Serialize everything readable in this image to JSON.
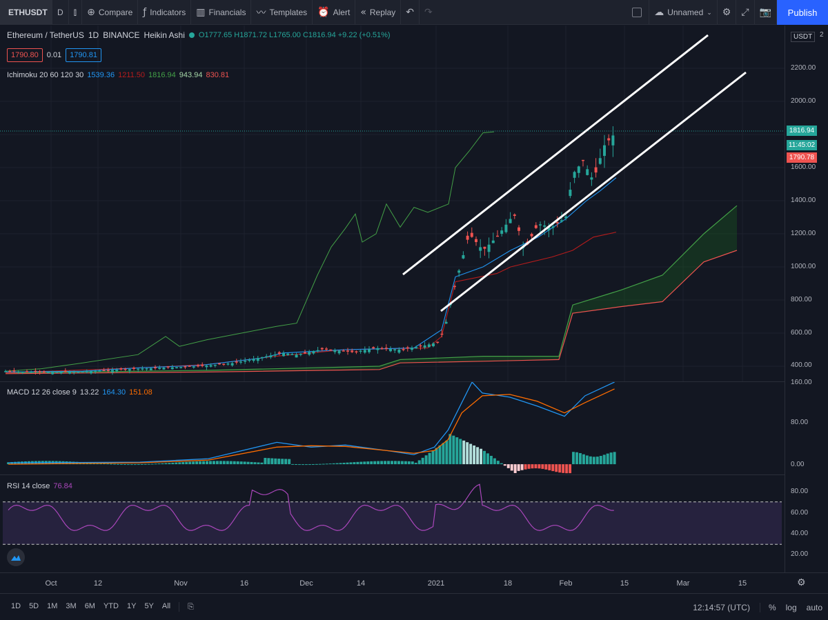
{
  "toolbar": {
    "symbol": "ETHUSDT",
    "interval": "D",
    "compare": "Compare",
    "indicators": "Indicators",
    "financials": "Financials",
    "templates": "Templates",
    "alert": "Alert",
    "replay": "Replay",
    "layout_name": "Unnamed",
    "publish": "Publish"
  },
  "legend": {
    "title": "Ethereum / TetherUS",
    "interval": "1D",
    "exchange": "BINANCE",
    "chart_style": "Heikin Ashi",
    "ohlc": "O1777.65 H1871.72 L1765.00 C1816.94 +9.22 (+0.51%)",
    "bid": "1790.80",
    "spread": "0.01",
    "ask": "1790.81",
    "ichimoku_label": "Ichimoku 20 60 120 30",
    "ichimoku_values": [
      "1539.36",
      "1211.50",
      "1816.94",
      "943.94",
      "830.81"
    ],
    "ichimoku_colors": [
      "#2196f3",
      "#b71c1c",
      "#43a047",
      "#a5d6a7",
      "#ef5350"
    ]
  },
  "macd": {
    "label": "MACD 12 26 close 9",
    "values": [
      "13.22",
      "164.30",
      "151.08"
    ]
  },
  "rsi": {
    "label": "RSI 14 close",
    "value": "76.84"
  },
  "price_axis": {
    "currency": "USDT",
    "ticks": [
      "2",
      "2200.00",
      "2000.00",
      "1600.00",
      "1400.00",
      "1200.00",
      "1000.00",
      "800.00",
      "600.00",
      "400.00"
    ],
    "last_price": "1816.94",
    "countdown": "11:45:02",
    "bid_line": "1790.78",
    "macd_ticks": [
      "160.00",
      "80.00",
      "0.00"
    ],
    "rsi_ticks": [
      "80.00",
      "60.00",
      "40.00",
      "20.00"
    ]
  },
  "time_axis": [
    "Oct",
    "12",
    "Nov",
    "16",
    "Dec",
    "14",
    "2021",
    "18",
    "Feb",
    "15",
    "Mar",
    "15"
  ],
  "bottom": {
    "ranges": [
      "1D",
      "5D",
      "1M",
      "3M",
      "6M",
      "YTD",
      "1Y",
      "5Y",
      "All"
    ],
    "clock": "12:14:57 (UTC)",
    "percent": "%",
    "log": "log",
    "auto": "auto"
  },
  "colors": {
    "up": "#26a69a",
    "down": "#ef5350",
    "accent": "#2962ff"
  }
}
